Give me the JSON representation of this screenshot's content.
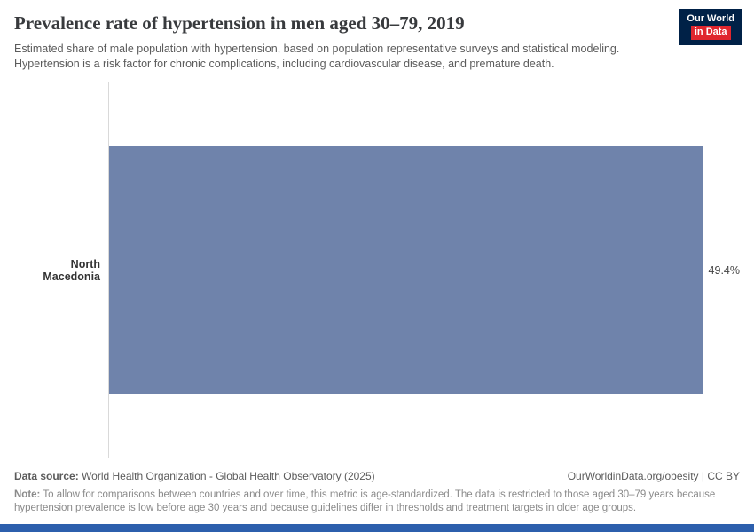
{
  "header": {
    "title": "Prevalence rate of hypertension in men aged 30–79, 2019",
    "subtitle": "Estimated share of male population with hypertension, based on population representative surveys and statistical modeling. Hypertension is a risk factor for chronic complications, including cardiovascular disease, and premature death.",
    "logo": {
      "line1": "Our World",
      "line2": "in Data",
      "bg_color": "#002147",
      "accent_color": "#e0262e"
    }
  },
  "chart_data": {
    "type": "bar",
    "orientation": "horizontal",
    "title": "Prevalence rate of hypertension in men aged 30–79, 2019",
    "categories": [
      "North Macedonia"
    ],
    "values": [
      49.4
    ],
    "value_labels": [
      "49.4%"
    ],
    "unit": "%",
    "xlim": [
      0,
      50
    ],
    "bar_color": "#6f83ab",
    "axis_line_color": "#d9d9d9",
    "grid": false,
    "legend": "none"
  },
  "footer": {
    "data_source_label": "Data source:",
    "data_source": "World Health Organization - Global Health Observatory (2025)",
    "rights": "OurWorldinData.org/obesity | CC BY",
    "note_label": "Note:",
    "note": "To allow for comparisons between countries and over time, this metric is age-standardized. The data is restricted to those aged 30–79 years because hypertension prevalence is low before age 30 years and because guidelines differ in thresholds and treatment targets in older age groups."
  },
  "accent_bar_color": "#2c5fad"
}
